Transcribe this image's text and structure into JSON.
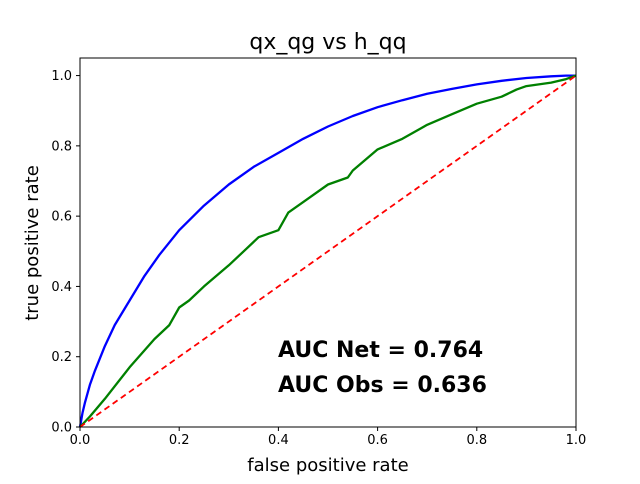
{
  "chart_data": {
    "type": "line",
    "title": "qx_qg vs h_qq",
    "xlabel": "false positive rate",
    "ylabel": "true positive rate",
    "xlim": [
      0,
      1
    ],
    "ylim": [
      0,
      1.05
    ],
    "x_ticks": [
      "0.0",
      "0.2",
      "0.4",
      "0.6",
      "0.8",
      "1.0"
    ],
    "y_ticks": [
      "0.0",
      "0.2",
      "0.4",
      "0.6",
      "0.8",
      "1.0"
    ],
    "grid": false,
    "series": [
      {
        "color": "#0000ff",
        "style": "solid",
        "x": [
          0,
          0.005,
          0.01,
          0.02,
          0.03,
          0.05,
          0.07,
          0.1,
          0.13,
          0.16,
          0.2,
          0.25,
          0.3,
          0.35,
          0.4,
          0.45,
          0.5,
          0.55,
          0.6,
          0.65,
          0.7,
          0.75,
          0.8,
          0.85,
          0.9,
          0.95,
          0.98,
          1.0
        ],
        "y": [
          0,
          0.04,
          0.07,
          0.12,
          0.16,
          0.23,
          0.29,
          0.36,
          0.43,
          0.49,
          0.56,
          0.63,
          0.69,
          0.74,
          0.78,
          0.82,
          0.855,
          0.885,
          0.91,
          0.93,
          0.948,
          0.962,
          0.975,
          0.985,
          0.993,
          0.998,
          1.0,
          1.0
        ]
      },
      {
        "color": "#008000",
        "style": "solid",
        "x": [
          0,
          0.02,
          0.05,
          0.1,
          0.15,
          0.18,
          0.2,
          0.22,
          0.25,
          0.3,
          0.33,
          0.36,
          0.4,
          0.42,
          0.45,
          0.5,
          0.54,
          0.55,
          0.6,
          0.65,
          0.7,
          0.75,
          0.8,
          0.85,
          0.88,
          0.9,
          0.95,
          0.98,
          1.0
        ],
        "y": [
          0,
          0.03,
          0.08,
          0.17,
          0.25,
          0.29,
          0.34,
          0.36,
          0.4,
          0.46,
          0.5,
          0.54,
          0.56,
          0.61,
          0.64,
          0.69,
          0.71,
          0.73,
          0.79,
          0.82,
          0.86,
          0.89,
          0.92,
          0.94,
          0.96,
          0.97,
          0.98,
          0.99,
          1.0
        ]
      },
      {
        "color": "#ff0000",
        "style": "dashed",
        "x": [
          0,
          1
        ],
        "y": [
          0,
          1
        ]
      }
    ],
    "annotations": [
      "AUC Net = 0.764",
      "AUC Obs = 0.636"
    ]
  }
}
